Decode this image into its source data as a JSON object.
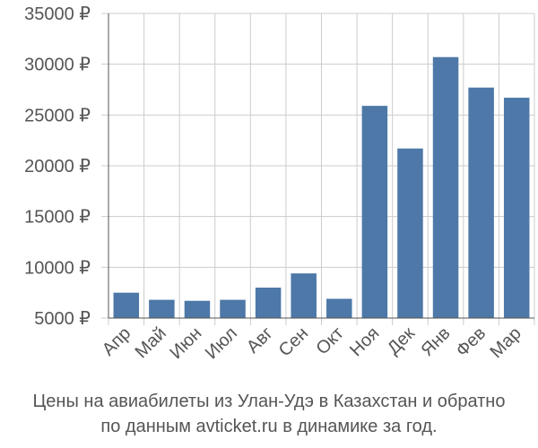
{
  "chart_data": {
    "type": "bar",
    "categories": [
      "Апр",
      "Май",
      "Июн",
      "Июл",
      "Авг",
      "Сен",
      "Окт",
      "Ноя",
      "Дек",
      "Янв",
      "Фев",
      "Мар"
    ],
    "values": [
      7500,
      6800,
      6700,
      6800,
      8000,
      9400,
      6900,
      25900,
      21700,
      30700,
      27700,
      26700
    ],
    "ylim": [
      5000,
      35000
    ],
    "yticks": [
      5000,
      10000,
      15000,
      20000,
      25000,
      30000,
      35000
    ],
    "ytick_labels": [
      "5000 ₽",
      "10000 ₽",
      "15000 ₽",
      "20000 ₽",
      "25000 ₽",
      "30000 ₽",
      "35000 ₽"
    ],
    "bar_color": "#4d78a8",
    "grid": true,
    "grid_color": "#cccccc",
    "axis_color": "#555555",
    "text_color": "#555555",
    "title_line1": "Цены на авиабилеты из Улан-Удэ в Казахстан и обратно",
    "title_line2": "по данным avticket.ru в динамике за год."
  }
}
